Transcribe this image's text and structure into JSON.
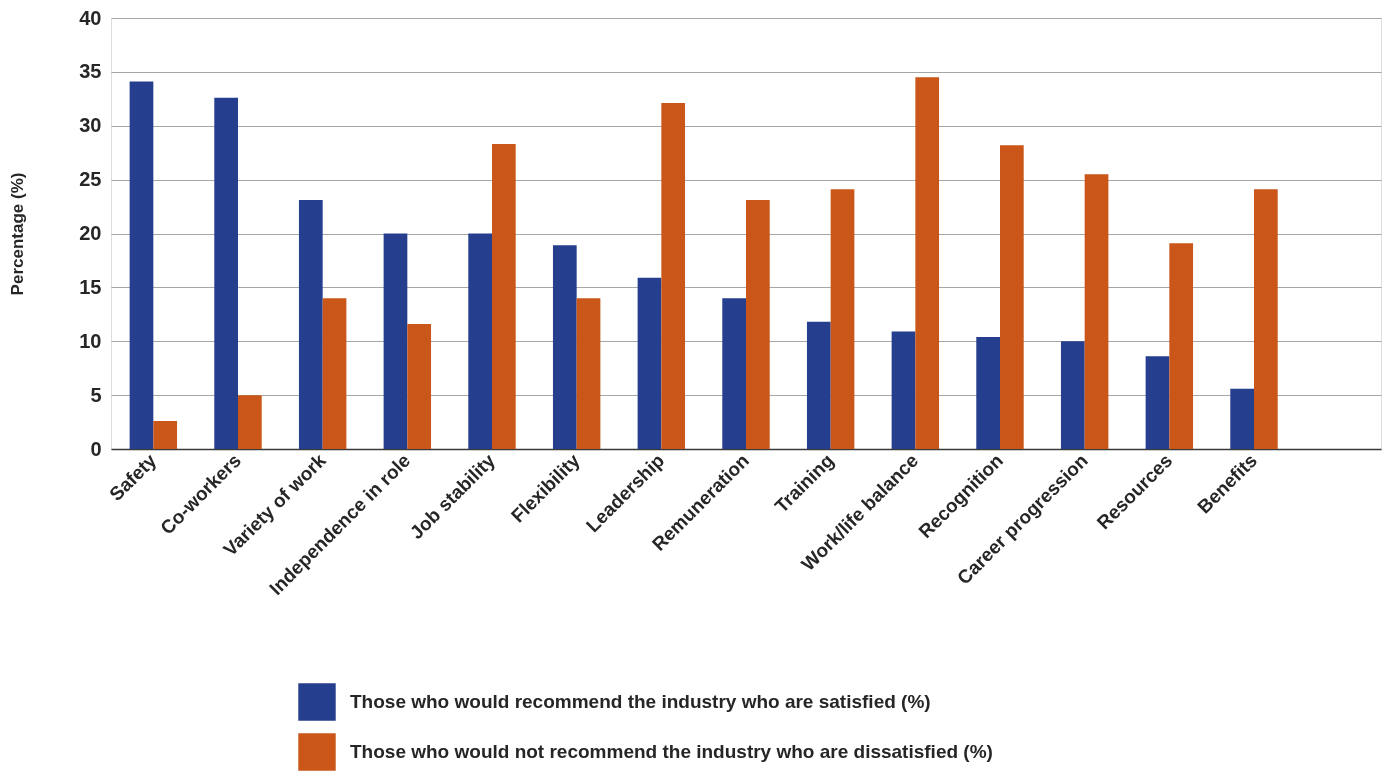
{
  "chart_data": {
    "type": "bar",
    "ylabel": "Percentage (%)",
    "categories": [
      "Safety",
      "Co-workers",
      "Variety of work",
      "Independence in role",
      "Job stability",
      "Flexibility",
      "Leadership",
      "Remuneration",
      "Training",
      "Work/life balance",
      "Recognition",
      "Career progression",
      "Resources",
      "Benefits",
      null
    ],
    "series": [
      {
        "name": "Those who would recommend the industry who are satisfied (%)",
        "color": "#253e8d",
        "values": [
          34.1,
          32.6,
          23.1,
          20.0,
          20.0,
          18.9,
          15.9,
          14.0,
          11.8,
          10.9,
          10.4,
          10.0,
          8.6,
          5.6,
          null
        ]
      },
      {
        "name": "Those who would not recommend the industry who are dissatisfied (%)",
        "color": "#ca5719",
        "values": [
          2.6,
          5.0,
          14.0,
          11.6,
          28.3,
          14.0,
          32.1,
          23.1,
          24.1,
          34.5,
          28.2,
          25.5,
          19.1,
          24.1,
          null
        ]
      }
    ],
    "ylim": [
      0,
      40
    ],
    "yticks": [
      0,
      5,
      10,
      15,
      20,
      25,
      30,
      35,
      40
    ],
    "grid": "y",
    "legend": "bottom"
  }
}
